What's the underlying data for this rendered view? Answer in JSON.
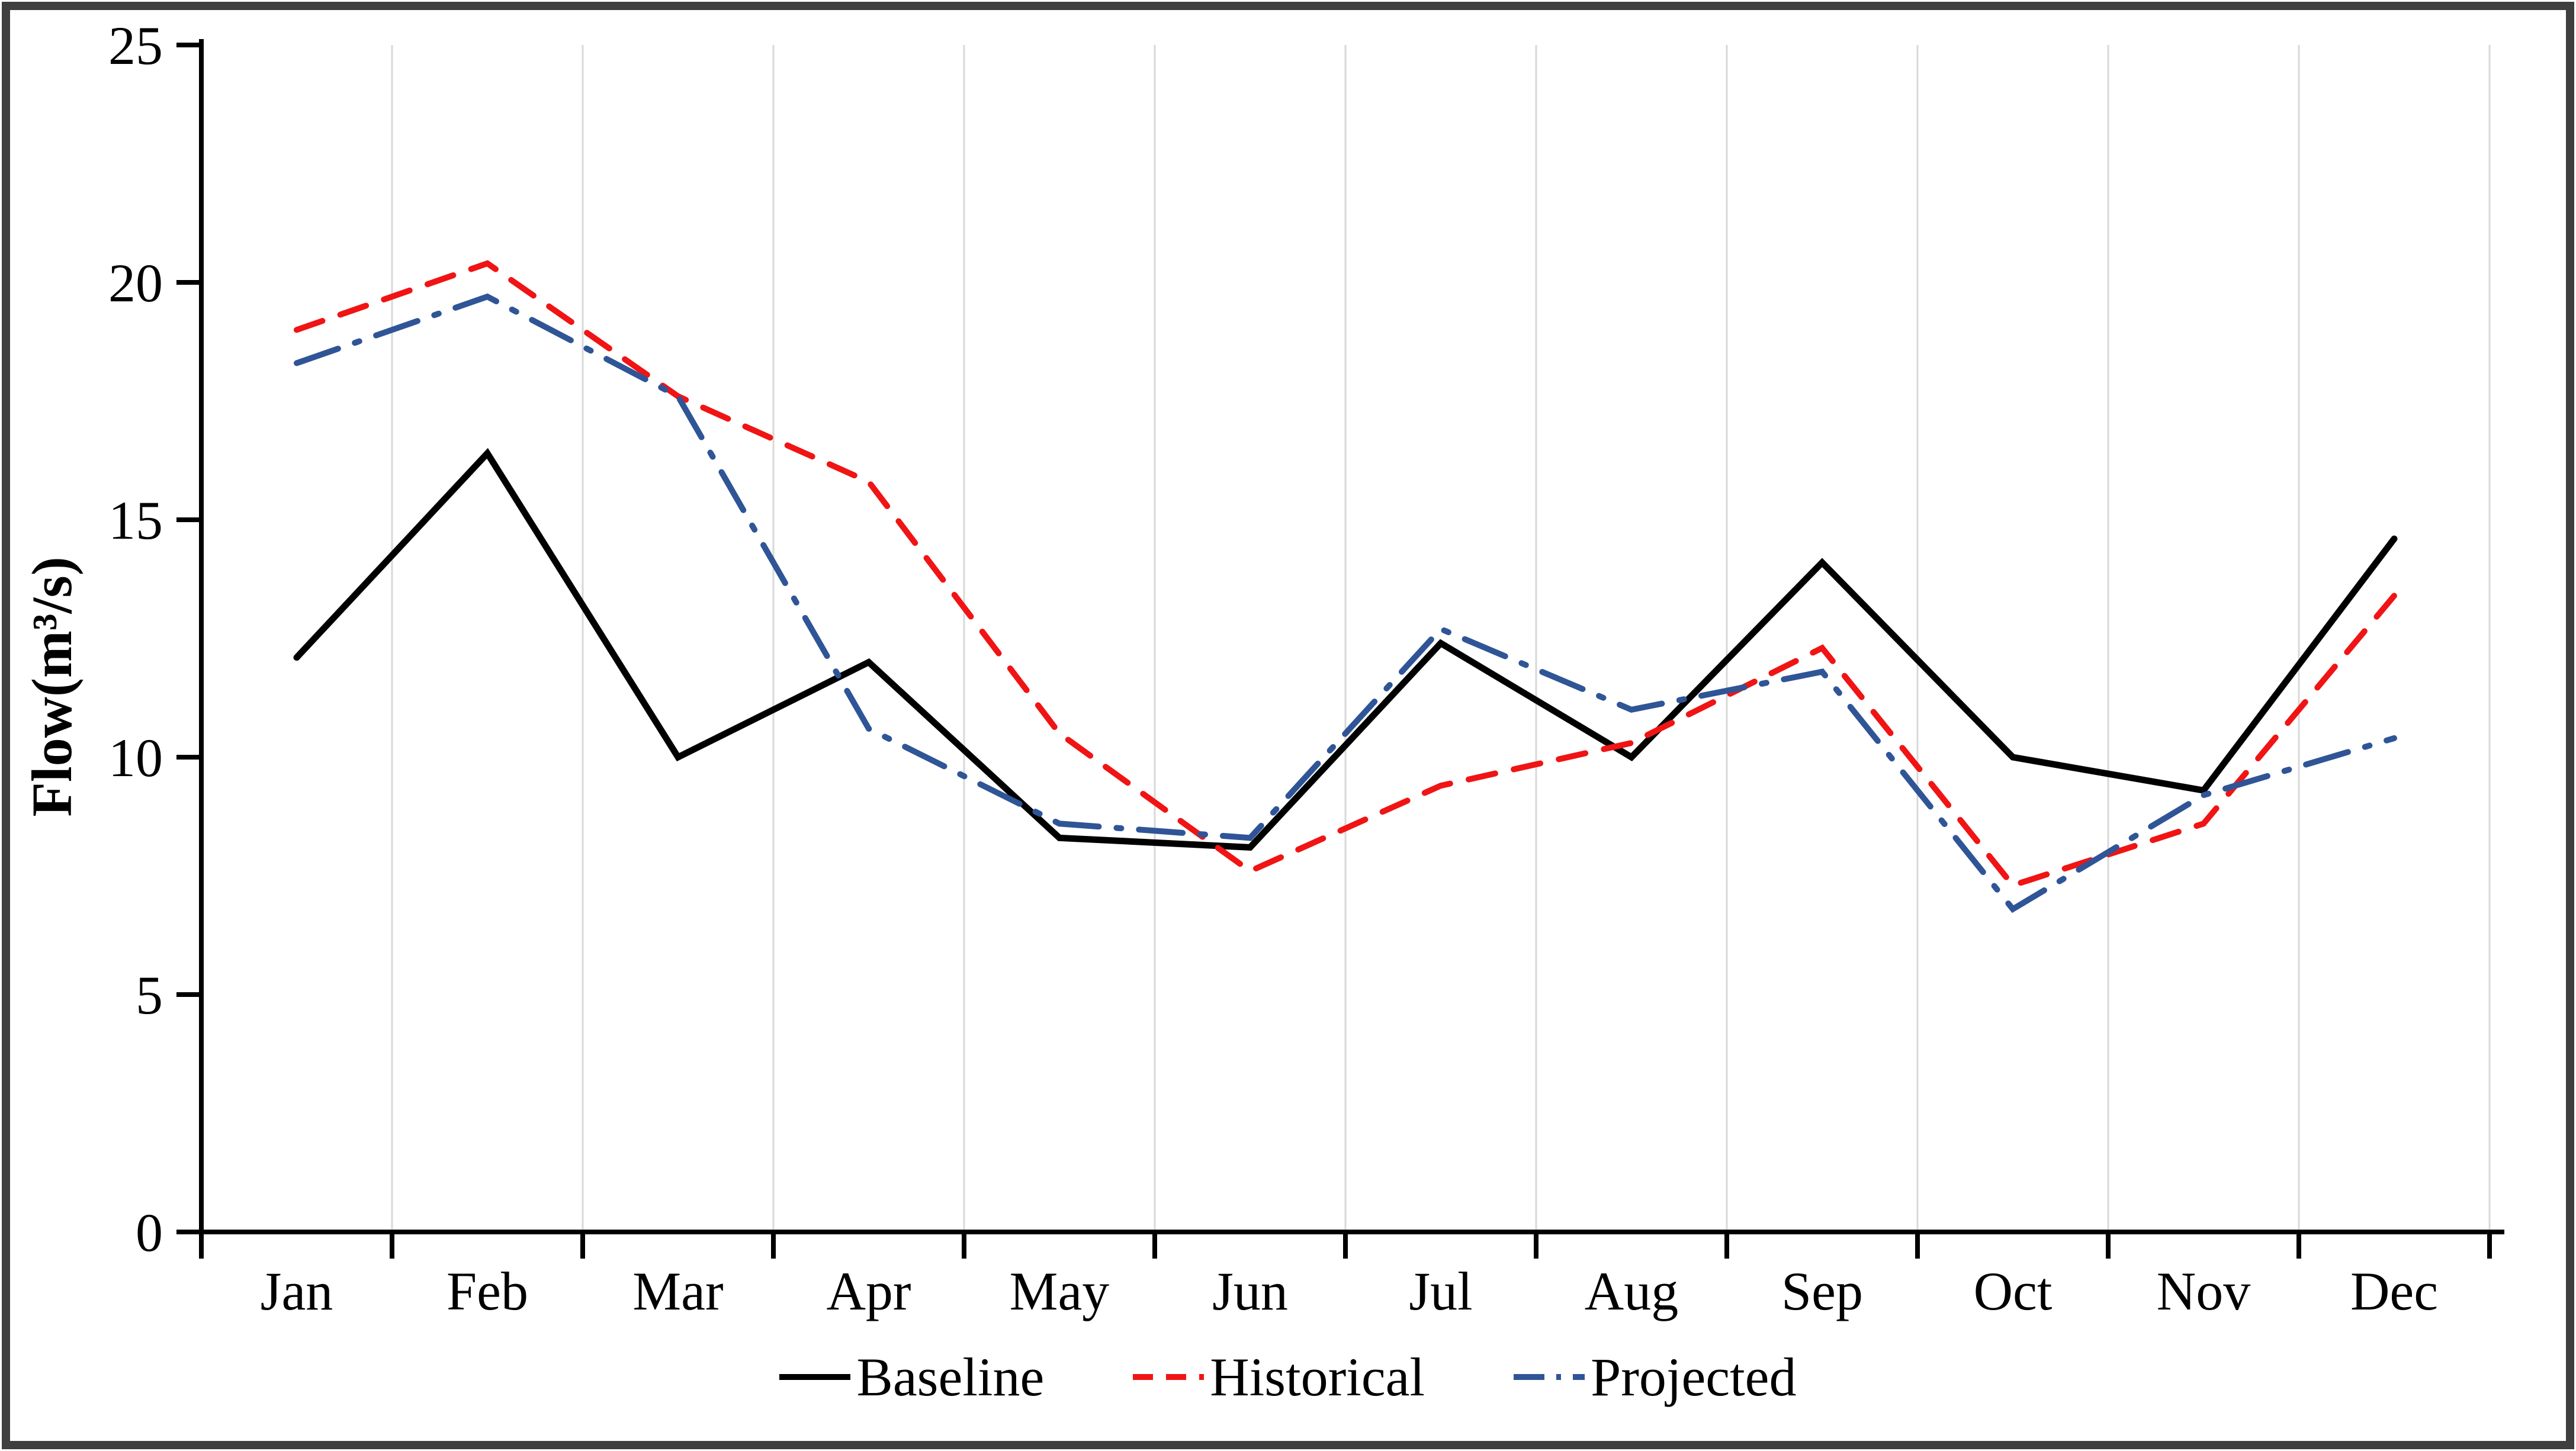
{
  "chart_data": {
    "type": "line",
    "title": "",
    "xlabel": "",
    "ylabel": "Flow(m³/s)",
    "categories": [
      "Jan",
      "Feb",
      "Mar",
      "Apr",
      "May",
      "Jun",
      "Jul",
      "Aug",
      "Sep",
      "Oct",
      "Nov",
      "Dec"
    ],
    "y_ticks": [
      "0",
      "5",
      "10",
      "15",
      "20",
      "25"
    ],
    "ylim": [
      0,
      25
    ],
    "grid": "vertical-only",
    "gridline_color": "#D8D8D8",
    "axis_color": "#000000",
    "border_color": "#3F3F3F",
    "background_color": "#FFFFFF",
    "legend_position": "bottom-center",
    "series": [
      {
        "name": "Baseline",
        "color": "#000000",
        "style": "solid",
        "values": [
          12.1,
          16.4,
          10.0,
          12.0,
          8.3,
          8.1,
          12.4,
          10.0,
          14.1,
          10.0,
          9.3,
          14.6
        ]
      },
      {
        "name": "Historical",
        "color": "#F01414",
        "style": "dashed",
        "values": [
          19.0,
          20.4,
          17.6,
          15.8,
          10.5,
          7.6,
          9.4,
          10.3,
          12.3,
          7.3,
          8.6,
          13.4
        ]
      },
      {
        "name": "Projected",
        "color": "#2F5597",
        "style": "dashdot",
        "values": [
          18.3,
          19.7,
          17.6,
          10.6,
          8.6,
          8.3,
          12.7,
          11.0,
          11.8,
          6.8,
          9.2,
          10.4
        ]
      }
    ]
  }
}
